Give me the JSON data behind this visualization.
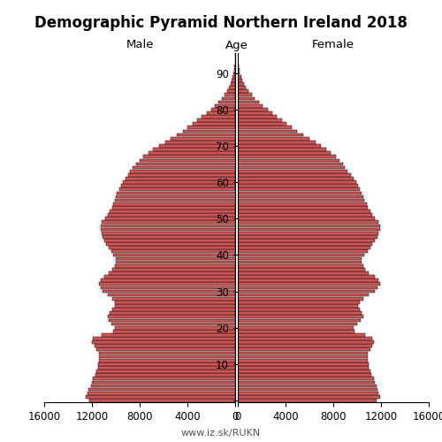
{
  "title": "Demographic Pyramid Northern Ireland 2018",
  "male_label": "Male",
  "female_label": "Female",
  "age_label": "Age",
  "footer": "www.iz.sk/RUKN",
  "xlim": 16000,
  "bar_color": "#CC5555",
  "bar_edge_color": "#111111",
  "bar_linewidth": 0.35,
  "background_color": "#ffffff",
  "ages": [
    0,
    1,
    2,
    3,
    4,
    5,
    6,
    7,
    8,
    9,
    10,
    11,
    12,
    13,
    14,
    15,
    16,
    17,
    18,
    19,
    20,
    21,
    22,
    23,
    24,
    25,
    26,
    27,
    28,
    29,
    30,
    31,
    32,
    33,
    34,
    35,
    36,
    37,
    38,
    39,
    40,
    41,
    42,
    43,
    44,
    45,
    46,
    47,
    48,
    49,
    50,
    51,
    52,
    53,
    54,
    55,
    56,
    57,
    58,
    59,
    60,
    61,
    62,
    63,
    64,
    65,
    66,
    67,
    68,
    69,
    70,
    71,
    72,
    73,
    74,
    75,
    76,
    77,
    78,
    79,
    80,
    81,
    82,
    83,
    84,
    85,
    86,
    87,
    88,
    89,
    90,
    91,
    92,
    93,
    94,
    95
  ],
  "male": [
    12200,
    12500,
    12400,
    12300,
    12100,
    12000,
    11900,
    11700,
    11600,
    11500,
    11500,
    11400,
    11400,
    11400,
    11600,
    11800,
    12000,
    11900,
    11200,
    10200,
    10100,
    10400,
    10600,
    10700,
    10500,
    10300,
    10100,
    10100,
    10300,
    10700,
    11100,
    11300,
    11400,
    11300,
    11000,
    10600,
    10300,
    10100,
    10000,
    10000,
    10200,
    10400,
    10600,
    10800,
    11000,
    11100,
    11200,
    11300,
    11300,
    11200,
    10900,
    10700,
    10500,
    10300,
    10200,
    10100,
    10000,
    9900,
    9700,
    9600,
    9400,
    9200,
    9000,
    8800,
    8600,
    8300,
    8000,
    7700,
    7300,
    6900,
    6400,
    5900,
    5400,
    4900,
    4400,
    4000,
    3600,
    3200,
    2800,
    2400,
    2000,
    1700,
    1400,
    1100,
    900,
    700,
    550,
    420,
    310,
    220,
    150,
    100,
    65,
    40,
    22,
    11
  ],
  "female": [
    11600,
    11900,
    11800,
    11700,
    11600,
    11500,
    11400,
    11200,
    11100,
    11000,
    11000,
    10900,
    10900,
    10900,
    11100,
    11300,
    11400,
    11300,
    10700,
    9800,
    9700,
    10000,
    10300,
    10500,
    10400,
    10200,
    10100,
    10200,
    10500,
    11000,
    11500,
    11700,
    11900,
    11800,
    11500,
    11000,
    10700,
    10500,
    10400,
    10400,
    10600,
    10900,
    11100,
    11300,
    11500,
    11700,
    11800,
    11900,
    11900,
    11800,
    11500,
    11300,
    11100,
    10900,
    10800,
    10600,
    10500,
    10400,
    10200,
    10100,
    9900,
    9700,
    9500,
    9200,
    9000,
    8800,
    8500,
    8200,
    7800,
    7400,
    7000,
    6500,
    6000,
    5500,
    5000,
    4500,
    4100,
    3700,
    3300,
    2900,
    2500,
    2100,
    1800,
    1400,
    1200,
    900,
    700,
    540,
    400,
    290,
    200,
    130,
    85,
    52,
    30,
    15
  ],
  "title_fontsize": 12,
  "label_fontsize": 9.5,
  "tick_fontsize": 8.5,
  "footer_fontsize": 8
}
